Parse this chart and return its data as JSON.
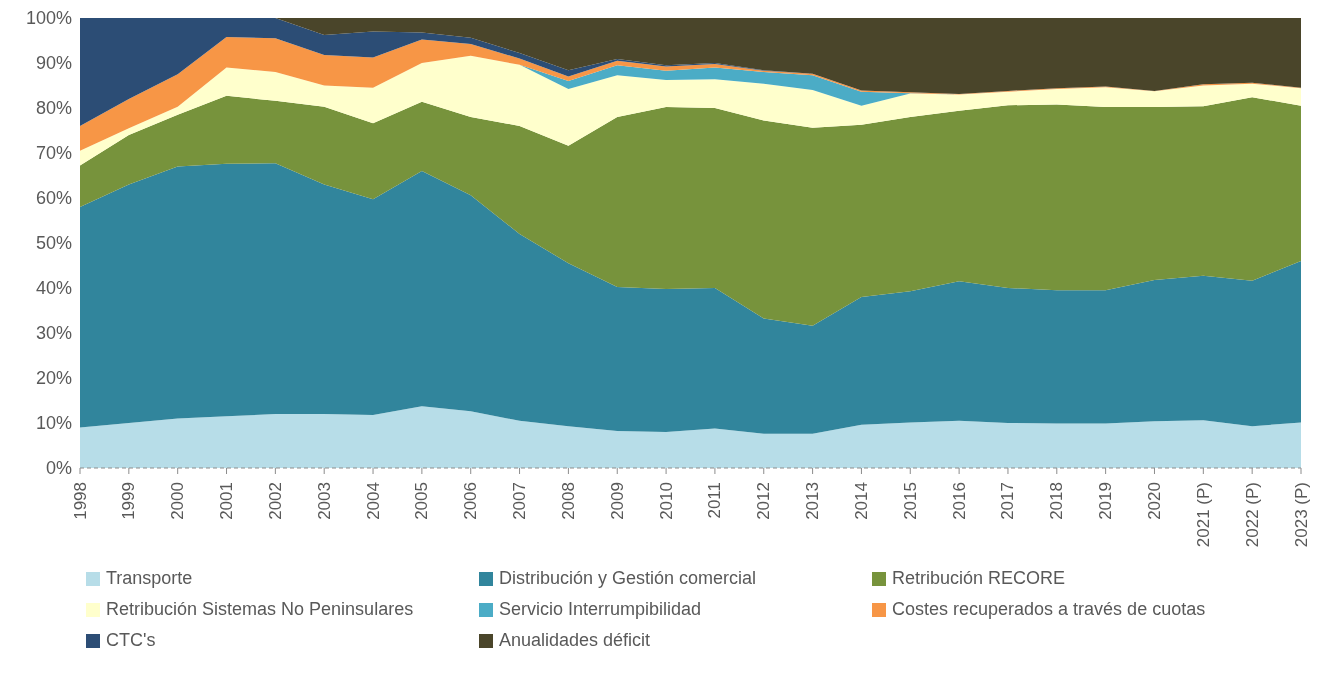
{
  "chart_data": {
    "type": "area",
    "stacked": true,
    "categories": [
      "1998",
      "1999",
      "2000",
      "2001",
      "2002",
      "2003",
      "2004",
      "2005",
      "2006",
      "2007",
      "2008",
      "2009",
      "2010",
      "2011",
      "2012",
      "2013",
      "2014",
      "2015",
      "2016",
      "2017",
      "2018",
      "2019",
      "2020",
      "2021 (P)",
      "2022 (P)",
      "2023 (P)"
    ],
    "series": [
      {
        "name": "Transporte",
        "color": "#b7dde8",
        "values": [
          9,
          10,
          11,
          11.5,
          12,
          12,
          11.8,
          13.7,
          12.6,
          10.5,
          9.3,
          8.2,
          8,
          8.8,
          7.6,
          7.6,
          9.6,
          10.1,
          10.5,
          10,
          9.9,
          9.9,
          10.4,
          10.6,
          9.3,
          10.1
        ]
      },
      {
        "name": "Distribución y Gestión comercial",
        "color": "#31859c",
        "values": [
          49,
          53,
          56,
          56.1,
          55.7,
          51,
          47.9,
          52.3,
          48,
          41.5,
          36.2,
          32,
          31.8,
          31.2,
          25.6,
          24,
          28.4,
          29.2,
          31,
          30,
          29.6,
          29.6,
          31.4,
          32.1,
          32.3,
          35.9
        ]
      },
      {
        "name": "Retribución RECORE",
        "color": "#77933c",
        "values": [
          9.2,
          11,
          11.5,
          15.1,
          13.9,
          17.3,
          16.9,
          15.4,
          17.4,
          24,
          26.1,
          37.8,
          40.4,
          40,
          44,
          44,
          38.3,
          38.7,
          37.9,
          40.6,
          41.3,
          40.7,
          38.4,
          37.7,
          40.8,
          34.5
        ]
      },
      {
        "name": "Retribución Sistemas No Peninsulares",
        "color": "#ffffcc",
        "values": [
          3.3,
          1.5,
          1.8,
          6.3,
          6.4,
          4.7,
          7.9,
          8.6,
          13.6,
          13.6,
          12.6,
          9.3,
          6,
          6.4,
          8.2,
          8.4,
          4.2,
          5.2,
          3.6,
          3,
          3.4,
          4.4,
          3.5,
          4.6,
          3,
          3.9
        ]
      },
      {
        "name": "Servicio Interrumpibilidad",
        "color": "#4bacc6",
        "values": [
          0,
          0,
          0,
          0,
          0,
          0,
          0,
          0,
          0,
          0,
          1.8,
          2.2,
          2.1,
          2.6,
          2.6,
          3.3,
          3.1,
          0.1,
          0,
          0,
          0,
          0,
          0,
          0,
          0,
          0
        ]
      },
      {
        "name": "Costes recuperados a través de cuotas",
        "color": "#f79646",
        "values": [
          5.5,
          6.5,
          7.2,
          6.8,
          7.5,
          6.8,
          6.7,
          5.2,
          2.6,
          1.4,
          1,
          1,
          0.9,
          0.8,
          0.3,
          0.3,
          0.3,
          0.2,
          0.1,
          0.2,
          0.2,
          0.2,
          0.1,
          0.3,
          0.2,
          0.1
        ]
      },
      {
        "name": "CTC's",
        "color": "#2c4d75",
        "values": [
          24,
          18,
          12.5,
          4.2,
          4.5,
          4.4,
          5.8,
          1.6,
          1.4,
          1.2,
          1.4,
          0.4,
          0.3,
          0.2,
          0.1,
          0,
          0,
          0,
          0,
          0,
          0,
          0,
          0,
          0,
          0,
          0
        ]
      },
      {
        "name": "Anualidades déficit",
        "color": "#4a452a",
        "values": [
          0,
          0,
          0,
          0,
          0,
          3.8,
          3,
          3.2,
          4.4,
          7.8,
          11.6,
          9.1,
          10.5,
          10,
          11.6,
          12.4,
          16.1,
          16.5,
          16.9,
          16.2,
          15.6,
          15.2,
          16.2,
          14.7,
          14.4,
          15.5
        ]
      }
    ],
    "ylim": [
      0,
      100
    ],
    "yticks": [
      {
        "value": 0,
        "label": "0%"
      },
      {
        "value": 10,
        "label": "10%"
      },
      {
        "value": 20,
        "label": "20%"
      },
      {
        "value": 30,
        "label": "30%"
      },
      {
        "value": 40,
        "label": "40%"
      },
      {
        "value": 50,
        "label": "50%"
      },
      {
        "value": 60,
        "label": "60%"
      },
      {
        "value": 70,
        "label": "70%"
      },
      {
        "value": 80,
        "label": "80%"
      },
      {
        "value": 90,
        "label": "90%"
      },
      {
        "value": 100,
        "label": "100%"
      }
    ],
    "grid": false,
    "legend": "bottom"
  }
}
